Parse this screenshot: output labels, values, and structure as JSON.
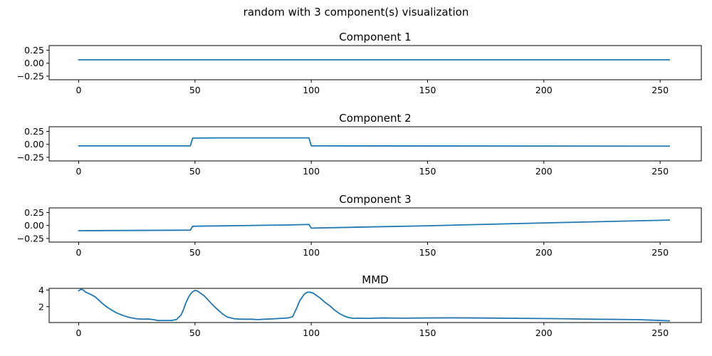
{
  "figure": {
    "suptitle": "random with 3 component(s) visualization",
    "line_color": "#1f77b4"
  },
  "chart_data": [
    {
      "type": "line",
      "title": "Component 1",
      "xlim": [
        -12.7,
        267.7
      ],
      "ylim": [
        -0.32,
        0.34
      ],
      "xticks": [
        0,
        50,
        100,
        150,
        200,
        250
      ],
      "yticks": [
        0.25,
        0.0,
        -0.25
      ],
      "ytick_labels": [
        "0.25",
        "0.00",
        "−0.25"
      ],
      "grid": false,
      "series": [
        {
          "points": [
            [
              0,
              0.065
            ],
            [
              254,
              0.065
            ]
          ]
        }
      ]
    },
    {
      "type": "line",
      "title": "Component 2",
      "xlim": [
        -12.7,
        267.7
      ],
      "ylim": [
        -0.32,
        0.34
      ],
      "xticks": [
        0,
        50,
        100,
        150,
        200,
        250
      ],
      "yticks": [
        0.25,
        0.0,
        -0.25
      ],
      "ytick_labels": [
        "0.25",
        "0.00",
        "−0.25"
      ],
      "grid": false,
      "series": [
        {
          "points": [
            [
              0,
              -0.03
            ],
            [
              48,
              -0.03
            ],
            [
              49,
              0.12
            ],
            [
              60,
              0.125
            ],
            [
              80,
              0.125
            ],
            [
              99,
              0.125
            ],
            [
              100,
              -0.03
            ],
            [
              254,
              -0.035
            ]
          ]
        }
      ]
    },
    {
      "type": "line",
      "title": "Component 3",
      "xlim": [
        -12.7,
        267.7
      ],
      "ylim": [
        -0.32,
        0.34
      ],
      "xticks": [
        0,
        50,
        100,
        150,
        200,
        250
      ],
      "yticks": [
        0.25,
        0.0,
        -0.25
      ],
      "ytick_labels": [
        "0.25",
        "0.00",
        "−0.25"
      ],
      "grid": false,
      "series": [
        {
          "points": [
            [
              0,
              -0.1
            ],
            [
              48,
              -0.09
            ],
            [
              49,
              -0.015
            ],
            [
              55,
              -0.01
            ],
            [
              60,
              -0.008
            ],
            [
              70,
              -0.002
            ],
            [
              80,
              0.005
            ],
            [
              90,
              0.01
            ],
            [
              99,
              0.02
            ],
            [
              100,
              -0.05
            ],
            [
              150,
              -0.005
            ],
            [
              200,
              0.05
            ],
            [
              254,
              0.105
            ]
          ]
        }
      ]
    },
    {
      "type": "line",
      "title": "MMD",
      "xlim": [
        -12.7,
        267.7
      ],
      "ylim": [
        0.1,
        4.2
      ],
      "xticks": [
        0,
        50,
        100,
        150,
        200,
        250
      ],
      "yticks": [
        4,
        2
      ],
      "ytick_labels": [
        "4",
        "2"
      ],
      "grid": false,
      "series": [
        {
          "points": [
            [
              0,
              3.9
            ],
            [
              1,
              4.1
            ],
            [
              2,
              4.0
            ],
            [
              3,
              3.75
            ],
            [
              5,
              3.5
            ],
            [
              7,
              3.2
            ],
            [
              9,
              2.7
            ],
            [
              11,
              2.2
            ],
            [
              13,
              1.8
            ],
            [
              16,
              1.3
            ],
            [
              19,
              0.95
            ],
            [
              22,
              0.7
            ],
            [
              25,
              0.55
            ],
            [
              28,
              0.5
            ],
            [
              30,
              0.52
            ],
            [
              32,
              0.45
            ],
            [
              34,
              0.35
            ],
            [
              37,
              0.34
            ],
            [
              40,
              0.35
            ],
            [
              42,
              0.45
            ],
            [
              44,
              1.0
            ],
            [
              45,
              1.6
            ],
            [
              46,
              2.4
            ],
            [
              47,
              3.0
            ],
            [
              48,
              3.5
            ],
            [
              49,
              3.8
            ],
            [
              50,
              3.95
            ],
            [
              51,
              3.9
            ],
            [
              52,
              3.7
            ],
            [
              54,
              3.3
            ],
            [
              56,
              2.7
            ],
            [
              58,
              2.1
            ],
            [
              60,
              1.6
            ],
            [
              62,
              1.1
            ],
            [
              64,
              0.75
            ],
            [
              67,
              0.55
            ],
            [
              70,
              0.5
            ],
            [
              74,
              0.5
            ],
            [
              77,
              0.45
            ],
            [
              80,
              0.5
            ],
            [
              84,
              0.55
            ],
            [
              87,
              0.6
            ],
            [
              90,
              0.65
            ],
            [
              92,
              0.8
            ],
            [
              93,
              1.4
            ],
            [
              94,
              2.0
            ],
            [
              95,
              2.7
            ],
            [
              96,
              3.1
            ],
            [
              97,
              3.5
            ],
            [
              98,
              3.7
            ],
            [
              99,
              3.75
            ],
            [
              100,
              3.7
            ],
            [
              101,
              3.6
            ],
            [
              102,
              3.4
            ],
            [
              104,
              3.0
            ],
            [
              106,
              2.5
            ],
            [
              108,
              2.1
            ],
            [
              110,
              1.6
            ],
            [
              112,
              1.2
            ],
            [
              114,
              0.9
            ],
            [
              116,
              0.7
            ],
            [
              118,
              0.6
            ],
            [
              120,
              0.62
            ],
            [
              125,
              0.6
            ],
            [
              130,
              0.65
            ],
            [
              140,
              0.62
            ],
            [
              150,
              0.65
            ],
            [
              160,
              0.66
            ],
            [
              170,
              0.65
            ],
            [
              180,
              0.63
            ],
            [
              190,
              0.6
            ],
            [
              200,
              0.58
            ],
            [
              210,
              0.55
            ],
            [
              220,
              0.5
            ],
            [
              230,
              0.48
            ],
            [
              240,
              0.45
            ],
            [
              250,
              0.35
            ],
            [
              254,
              0.3
            ]
          ]
        }
      ]
    }
  ]
}
